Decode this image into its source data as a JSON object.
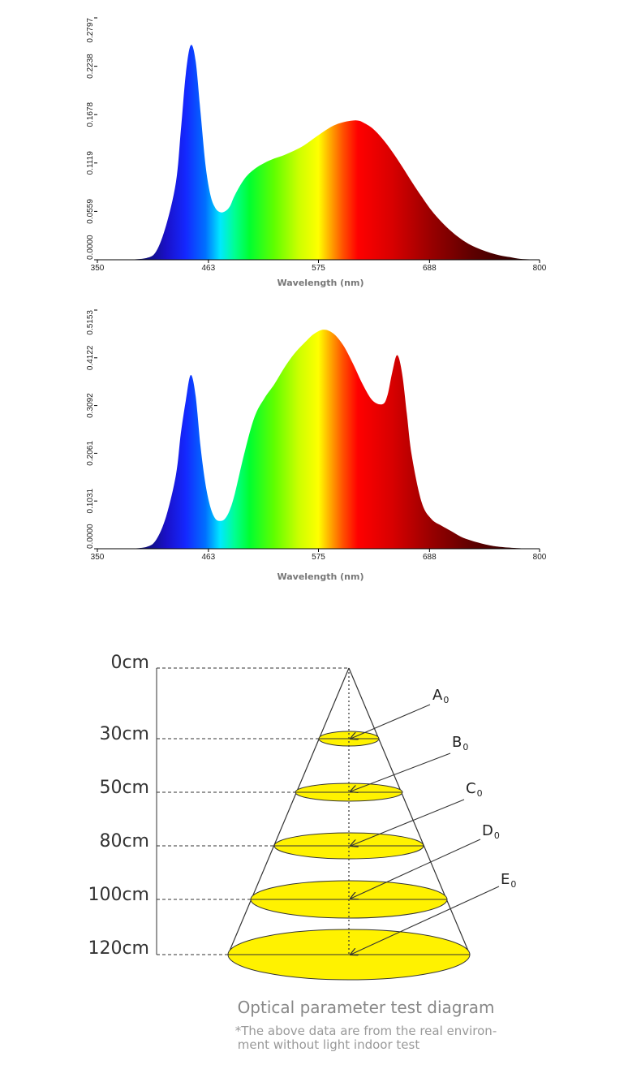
{
  "chart_data": [
    {
      "type": "area",
      "title": "",
      "xlabel": "Wavelength (nm)",
      "ylabel": "",
      "xlim": [
        350,
        800
      ],
      "ylim": [
        0,
        0.2797
      ],
      "x_ticks": [
        "350",
        "463",
        "575",
        "688",
        "800"
      ],
      "y_ticks": [
        "0.0000",
        "0.0559",
        "0.1119",
        "0.1678",
        "0.2238",
        "0.2797"
      ],
      "fill": "visible-spectrum gradient",
      "x": [
        380,
        400,
        410,
        420,
        430,
        435,
        440,
        445,
        450,
        455,
        460,
        465,
        470,
        475,
        480,
        485,
        490,
        500,
        510,
        520,
        530,
        540,
        550,
        560,
        570,
        580,
        590,
        600,
        610,
        615,
        620,
        630,
        640,
        650,
        660,
        670,
        680,
        690,
        700,
        710,
        720,
        730,
        740,
        750,
        760,
        770,
        780,
        790,
        800
      ],
      "values": [
        0,
        0.002,
        0.01,
        0.04,
        0.09,
        0.15,
        0.215,
        0.248,
        0.23,
        0.17,
        0.11,
        0.075,
        0.06,
        0.055,
        0.056,
        0.062,
        0.075,
        0.094,
        0.105,
        0.112,
        0.117,
        0.121,
        0.126,
        0.132,
        0.14,
        0.148,
        0.155,
        0.159,
        0.161,
        0.161,
        0.159,
        0.152,
        0.14,
        0.125,
        0.108,
        0.09,
        0.073,
        0.057,
        0.044,
        0.033,
        0.024,
        0.017,
        0.012,
        0.008,
        0.005,
        0.003,
        0.001,
        0.0005,
        0
      ]
    },
    {
      "type": "area",
      "title": "",
      "xlabel": "Wavelength (nm)",
      "ylabel": "",
      "xlim": [
        350,
        800
      ],
      "ylim": [
        0,
        0.5153
      ],
      "x_ticks": [
        "350",
        "463",
        "575",
        "688",
        "800"
      ],
      "y_ticks": [
        "0.0000",
        "0.1031",
        "0.2061",
        "0.3092",
        "0.4122",
        "0.5153"
      ],
      "fill": "visible-spectrum gradient",
      "x": [
        380,
        400,
        410,
        420,
        430,
        435,
        440,
        445,
        450,
        455,
        460,
        465,
        470,
        475,
        480,
        485,
        490,
        500,
        510,
        520,
        530,
        540,
        550,
        560,
        570,
        580,
        590,
        600,
        610,
        620,
        630,
        640,
        645,
        650,
        655,
        660,
        665,
        670,
        680,
        690,
        700,
        710,
        720,
        730,
        740,
        750,
        760,
        780,
        800
      ],
      "values": [
        0,
        0.004,
        0.02,
        0.07,
        0.16,
        0.25,
        0.32,
        0.375,
        0.33,
        0.22,
        0.14,
        0.09,
        0.065,
        0.06,
        0.065,
        0.085,
        0.12,
        0.21,
        0.285,
        0.325,
        0.355,
        0.39,
        0.42,
        0.443,
        0.463,
        0.473,
        0.465,
        0.44,
        0.4,
        0.355,
        0.32,
        0.312,
        0.33,
        0.38,
        0.418,
        0.38,
        0.29,
        0.2,
        0.1,
        0.064,
        0.05,
        0.038,
        0.026,
        0.018,
        0.012,
        0.007,
        0.004,
        0.001,
        0
      ]
    }
  ],
  "diagram": {
    "distances": [
      "0cm",
      "30cm",
      "50cm",
      "80cm",
      "100cm",
      "120cm"
    ],
    "points": [
      {
        "letter": "A",
        "sub": "0"
      },
      {
        "letter": "B",
        "sub": "0"
      },
      {
        "letter": "C",
        "sub": "0"
      },
      {
        "letter": "D",
        "sub": "0"
      },
      {
        "letter": "E",
        "sub": "0"
      }
    ],
    "caption": "Optical parameter test diagram",
    "note_line1": "*The above data are from the real environ-",
    "note_line2": "ment without light indoor test",
    "colors": {
      "spot": "#fff200",
      "line": "#333333"
    }
  }
}
